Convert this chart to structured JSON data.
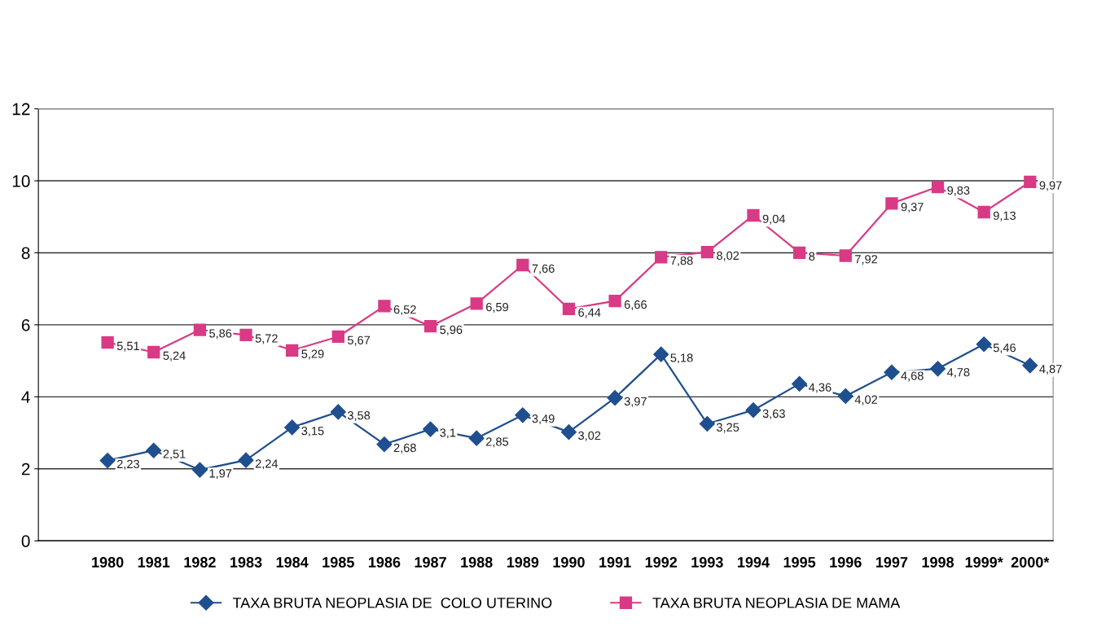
{
  "chart_data": {
    "type": "line",
    "categories": [
      "1980",
      "1981",
      "1982",
      "1983",
      "1984",
      "1985",
      "1986",
      "1987",
      "1988",
      "1989",
      "1990",
      "1991",
      "1992",
      "1993",
      "1994",
      "1995",
      "1996",
      "1997",
      "1998",
      "1999*",
      "2000*"
    ],
    "series": [
      {
        "name": "TAXA BRUTA NEOPLASIA DE  COLO UTERINO",
        "color": "#1f4f8f",
        "marker": "diamond",
        "values": [
          2.23,
          2.51,
          1.97,
          2.24,
          3.15,
          3.58,
          2.68,
          3.1,
          2.85,
          3.49,
          3.02,
          3.97,
          5.18,
          3.25,
          3.63,
          4.36,
          4.02,
          4.68,
          4.78,
          5.46,
          4.87
        ],
        "value_labels": [
          "2,23",
          "2,51",
          "1,97",
          "2,24",
          "3,15",
          "3,58",
          "2,68",
          "3,1",
          "2,85",
          "3,49",
          "3,02",
          "3,97",
          "5,18",
          "3,25",
          "3,63",
          "4,36",
          "4,02",
          "4,68",
          "4,78",
          "5,46",
          "4,87"
        ]
      },
      {
        "name": "TAXA BRUTA NEOPLASIA DE MAMA",
        "color": "#d93a85",
        "marker": "square",
        "values": [
          5.51,
          5.24,
          5.86,
          5.72,
          5.29,
          5.67,
          6.52,
          5.96,
          6.59,
          7.66,
          6.44,
          6.66,
          7.88,
          8.02,
          9.04,
          8,
          7.92,
          9.37,
          9.83,
          9.13,
          9.97
        ],
        "value_labels": [
          "5,51",
          "5,24",
          "5,86",
          "5,72",
          "5,29",
          "5,67",
          "6,52",
          "5,96",
          "6,59",
          "7,66",
          "6,44",
          "6,66",
          "7,88",
          "8,02",
          "9,04",
          "8",
          "7,92",
          "9,37",
          "9,83",
          "9,13",
          "9,97"
        ]
      }
    ],
    "ylim": [
      0,
      12
    ],
    "yticks": [
      0,
      2,
      4,
      6,
      8,
      10,
      12
    ],
    "grid": "y",
    "legend": "bottom",
    "line_style": "solid"
  }
}
